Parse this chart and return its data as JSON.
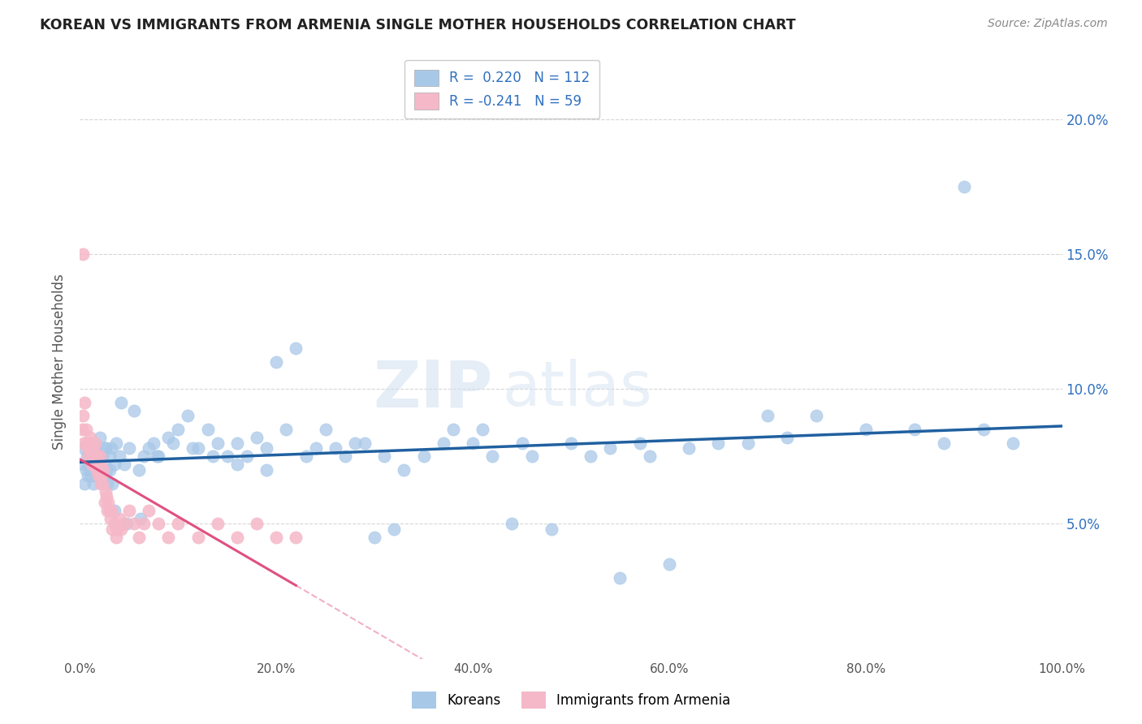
{
  "title": "KOREAN VS IMMIGRANTS FROM ARMENIA SINGLE MOTHER HOUSEHOLDS CORRELATION CHART",
  "source": "Source: ZipAtlas.com",
  "ylabel": "Single Mother Households",
  "legend_koreans": "Koreans",
  "legend_armenia": "Immigrants from Armenia",
  "r_korean": 0.22,
  "n_korean": 112,
  "r_armenia": -0.241,
  "n_armenia": 59,
  "watermark_zip": "ZIP",
  "watermark_atlas": "atlas",
  "blue_scatter_color": "#a8c8e8",
  "pink_scatter_color": "#f5b8c8",
  "blue_line_color": "#2060a0",
  "pink_line_color": "#e05080",
  "blue_legend_color": "#a8c8e8",
  "pink_legend_color": "#f5b8c8",
  "r_value_color": "#3070c0",
  "n_value_color": "#3070c0",
  "ytick_color": "#3070c0",
  "grid_color": "#cccccc",
  "ylim_min": 0,
  "ylim_max": 22,
  "xlim_min": 0,
  "xlim_max": 100,
  "ytick_vals": [
    5.0,
    10.0,
    15.0,
    20.0
  ],
  "xtick_vals": [
    0,
    20,
    40,
    60,
    80,
    100
  ],
  "korean_x": [
    0.3,
    0.4,
    0.5,
    0.6,
    0.7,
    0.8,
    0.9,
    1.0,
    1.0,
    1.1,
    1.1,
    1.2,
    1.3,
    1.4,
    1.5,
    1.5,
    1.6,
    1.7,
    1.8,
    1.9,
    2.0,
    2.0,
    2.1,
    2.2,
    2.3,
    2.4,
    2.5,
    2.6,
    2.7,
    2.8,
    3.0,
    3.0,
    3.2,
    3.3,
    3.5,
    3.7,
    4.0,
    4.2,
    4.5,
    5.0,
    5.5,
    6.0,
    6.5,
    7.0,
    7.5,
    8.0,
    9.0,
    10.0,
    11.0,
    12.0,
    13.0,
    14.0,
    15.0,
    16.0,
    17.0,
    18.0,
    19.0,
    20.0,
    21.0,
    22.0,
    24.0,
    25.0,
    27.0,
    28.0,
    30.0,
    32.0,
    33.0,
    35.0,
    37.0,
    38.0,
    40.0,
    41.0,
    42.0,
    44.0,
    45.0,
    46.0,
    48.0,
    50.0,
    52.0,
    54.0,
    55.0,
    57.0,
    58.0,
    60.0,
    62.0,
    65.0,
    68.0,
    70.0,
    72.0,
    75.0,
    80.0,
    85.0,
    88.0,
    90.0,
    92.0,
    95.0,
    1.2,
    1.8,
    2.5,
    3.5,
    4.8,
    6.2,
    7.8,
    9.5,
    11.5,
    13.5,
    16.0,
    19.0,
    23.0,
    26.0,
    29.0,
    31.0
  ],
  "korean_y": [
    7.2,
    7.8,
    6.5,
    7.0,
    7.5,
    6.8,
    7.2,
    8.0,
    7.5,
    7.8,
    6.8,
    7.2,
    7.5,
    6.5,
    7.0,
    7.8,
    6.8,
    7.5,
    7.0,
    7.2,
    7.5,
    8.2,
    6.8,
    7.0,
    7.5,
    6.8,
    7.2,
    7.8,
    7.0,
    6.5,
    7.5,
    7.0,
    7.8,
    6.5,
    7.2,
    8.0,
    7.5,
    9.5,
    7.2,
    7.8,
    9.2,
    7.0,
    7.5,
    7.8,
    8.0,
    7.5,
    8.2,
    8.5,
    9.0,
    7.8,
    8.5,
    8.0,
    7.5,
    8.0,
    7.5,
    8.2,
    7.8,
    11.0,
    8.5,
    11.5,
    7.8,
    8.5,
    7.5,
    8.0,
    4.5,
    4.8,
    7.0,
    7.5,
    8.0,
    8.5,
    8.0,
    8.5,
    7.5,
    5.0,
    8.0,
    7.5,
    4.8,
    8.0,
    7.5,
    7.8,
    3.0,
    8.0,
    7.5,
    3.5,
    7.8,
    8.0,
    8.0,
    9.0,
    8.2,
    9.0,
    8.5,
    8.5,
    8.0,
    17.5,
    8.5,
    8.0,
    7.5,
    7.2,
    7.8,
    5.5,
    5.0,
    5.2,
    7.5,
    8.0,
    7.8,
    7.5,
    7.2,
    7.0,
    7.5,
    7.8,
    8.0,
    7.5
  ],
  "armenia_x": [
    0.2,
    0.3,
    0.4,
    0.5,
    0.6,
    0.7,
    0.8,
    0.9,
    1.0,
    1.0,
    1.1,
    1.1,
    1.2,
    1.2,
    1.3,
    1.4,
    1.5,
    1.5,
    1.6,
    1.7,
    1.8,
    1.9,
    2.0,
    2.0,
    2.1,
    2.1,
    2.2,
    2.3,
    2.4,
    2.5,
    2.6,
    2.7,
    2.8,
    2.9,
    3.0,
    3.1,
    3.2,
    3.3,
    3.5,
    3.7,
    3.8,
    4.0,
    4.2,
    4.5,
    5.0,
    5.5,
    6.0,
    6.5,
    7.0,
    8.0,
    9.0,
    10.0,
    12.0,
    14.0,
    16.0,
    18.0,
    20.0,
    22.0,
    0.3
  ],
  "armenia_y": [
    8.5,
    9.0,
    8.0,
    9.5,
    8.5,
    8.0,
    7.8,
    7.5,
    8.2,
    7.8,
    8.0,
    7.5,
    7.8,
    7.2,
    7.5,
    7.8,
    7.5,
    8.0,
    7.2,
    7.0,
    7.5,
    6.8,
    7.5,
    6.8,
    7.2,
    6.5,
    6.8,
    6.5,
    7.0,
    5.8,
    6.2,
    6.0,
    5.5,
    5.8,
    5.5,
    5.2,
    5.5,
    4.8,
    5.0,
    4.5,
    4.8,
    5.2,
    4.8,
    5.0,
    5.5,
    5.0,
    4.5,
    5.0,
    5.5,
    5.0,
    4.5,
    5.0,
    4.5,
    5.0,
    4.5,
    5.0,
    4.5,
    4.5,
    15.0
  ]
}
